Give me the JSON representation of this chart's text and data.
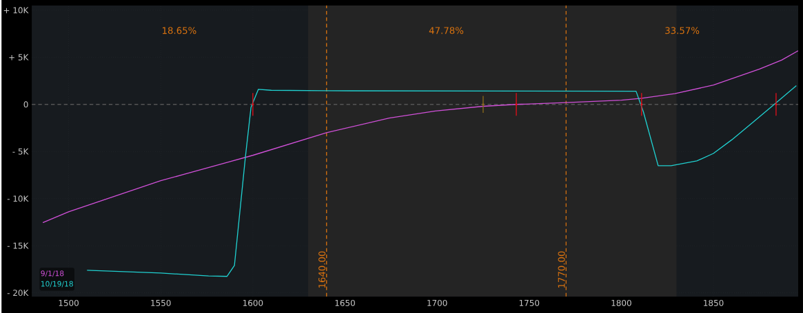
{
  "chart_data": {
    "type": "line",
    "xlim": [
      1480,
      1896
    ],
    "ylim": [
      -20400,
      10500
    ],
    "xticks": [
      1500,
      1550,
      1600,
      1650,
      1700,
      1750,
      1800,
      1850
    ],
    "yticks": [
      {
        "value": 10000,
        "label": "+ 10K"
      },
      {
        "value": 5000,
        "label": "+ 5K"
      },
      {
        "value": 0,
        "label": "0"
      },
      {
        "value": -5000,
        "label": "- 5K"
      },
      {
        "value": -10000,
        "label": "- 10K"
      },
      {
        "value": -15000,
        "label": "- 15K"
      },
      {
        "value": -20000,
        "label": "- 20K"
      }
    ],
    "grid": true,
    "legend": "bottom left",
    "series": [
      {
        "name": "9/1/18",
        "color": "#d050d8",
        "x": [
          1486,
          1500,
          1550,
          1587,
          1600,
          1640,
          1674,
          1699,
          1725,
          1743,
          1770,
          1800,
          1811,
          1829,
          1850,
          1875,
          1887,
          1896
        ],
        "values": [
          -12550,
          -11400,
          -8100,
          -6100,
          -5400,
          -3000,
          -1450,
          -700,
          -200,
          0,
          200,
          450,
          650,
          1150,
          2050,
          3750,
          4700,
          5700
        ]
      },
      {
        "name": "10/19/18",
        "color": "#20d0d0",
        "x": [
          1510,
          1550,
          1576,
          1586,
          1590,
          1596,
          1599,
          1603,
          1610,
          1640,
          1808,
          1812,
          1820,
          1827,
          1841,
          1850,
          1860,
          1872,
          1883,
          1895
        ],
        "values": [
          -17600,
          -17900,
          -18200,
          -18250,
          -17100,
          -5500,
          -300,
          1600,
          1500,
          1450,
          1400,
          -800,
          -6500,
          -6500,
          -6000,
          -5200,
          -3750,
          -1800,
          0,
          2000
        ]
      },
      {
        "type": "scatter",
        "color": "#e0101a",
        "marker": "circle",
        "x": [
          1600,
          1743,
          1811,
          1884
        ],
        "values": [
          0,
          0,
          0,
          0
        ],
        "errors": [
          1200,
          1200,
          1200,
          1200
        ]
      },
      {
        "type": "scatter",
        "color": "#8a6a1a",
        "marker": "circle",
        "x": [
          1725
        ],
        "values": [
          0
        ],
        "errors": [
          900
        ]
      }
    ],
    "bands": [
      {
        "axis": "x",
        "from": 1630,
        "to": 1830,
        "color": "#242424"
      }
    ],
    "ref_lines": [
      {
        "axis": "x",
        "value": 1640,
        "label": "1640.00",
        "color": "#d9720f",
        "line_style": "dashed"
      },
      {
        "axis": "x",
        "value": 1770,
        "label": "1770.00",
        "color": "#d9720f",
        "line_style": "dashed"
      },
      {
        "axis": "y",
        "value": 0,
        "color": "#555555",
        "line_style": "dashed"
      }
    ],
    "annotations": [
      "18.65%",
      "47.78%",
      "33.57%"
    ]
  }
}
